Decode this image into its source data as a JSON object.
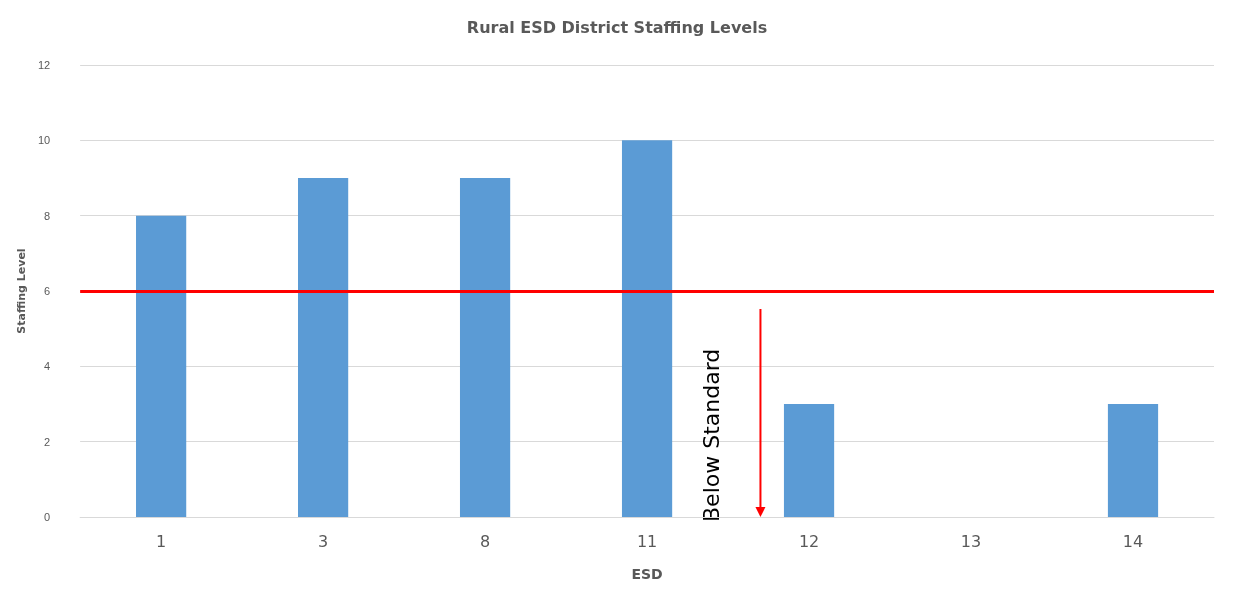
{
  "chart_data": {
    "type": "bar",
    "title": "Rural ESD District Staffing Levels",
    "xlabel": "ESD",
    "ylabel": "Staffing Level",
    "categories": [
      "1",
      "3",
      "8",
      "11",
      "12",
      "13",
      "14"
    ],
    "values": [
      8,
      9,
      9,
      10,
      3,
      null,
      3
    ],
    "color": "#5b9bd5",
    "ylim": [
      0,
      12
    ],
    "yticks": [
      0,
      2,
      4,
      6,
      8,
      10,
      12
    ],
    "grid": "y",
    "ref_lines": [
      {
        "axis": "y",
        "value": 6,
        "color": "#ff0000"
      }
    ],
    "annotations": [
      "Below Standard"
    ]
  }
}
